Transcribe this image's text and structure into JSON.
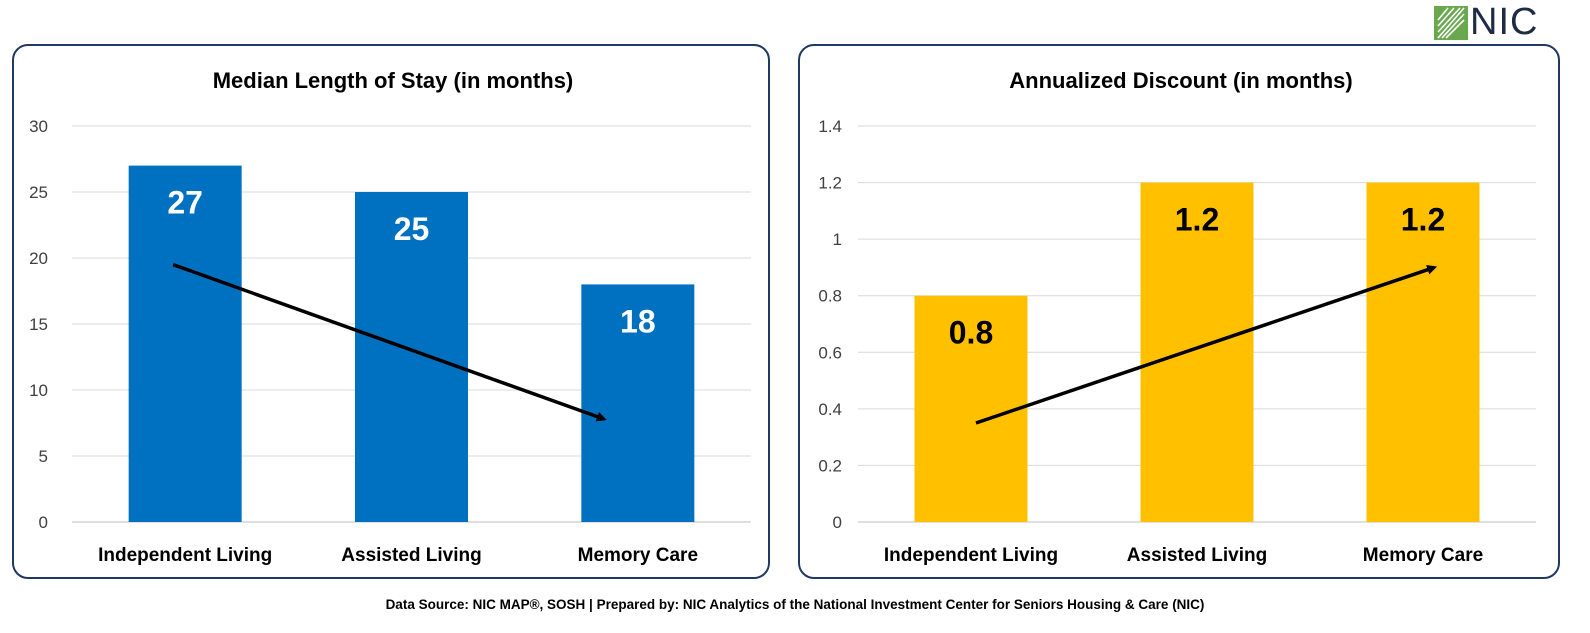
{
  "logo": {
    "text": "NIC",
    "icon": "nic-logo-icon",
    "color": "#6aa84f"
  },
  "footer": {
    "text": "Data Source: NIC MAP®, SOSH | Prepared by: NIC Analytics of the National Investment Center for Seniors Housing & Care (NIC)"
  },
  "chart_data": [
    {
      "type": "bar",
      "title": "Median Length of Stay (in months)",
      "categories": [
        "Independent Living",
        "Assisted Living",
        "Memory Care"
      ],
      "values": [
        27,
        25,
        18
      ],
      "data_labels": [
        "27",
        "25",
        "18"
      ],
      "ylim": [
        0,
        30
      ],
      "yticks": [
        0,
        5,
        10,
        15,
        20,
        25,
        30
      ],
      "ytick_labels": [
        "0",
        "5",
        "10",
        "15",
        "20",
        "25",
        "30"
      ],
      "bar_color": "#0070c0",
      "label_color": "#ffffff",
      "grid": true,
      "legend": "none",
      "trend_arrow": {
        "direction": "down",
        "from": {
          "category": "Independent Living",
          "value": 19.5
        },
        "to": {
          "category_index": 1.85,
          "value": 7.8
        }
      }
    },
    {
      "type": "bar",
      "title": "Annualized Discount (in months)",
      "categories": [
        "Independent Living",
        "Assisted Living",
        "Memory Care"
      ],
      "values": [
        0.8,
        1.2,
        1.2
      ],
      "data_labels": [
        "0.8",
        "1.2",
        "1.2"
      ],
      "ylim": [
        0,
        1.4
      ],
      "yticks": [
        0,
        0.2,
        0.4,
        0.6,
        0.8,
        1.0,
        1.2,
        1.4
      ],
      "ytick_labels": [
        "0",
        "0.2",
        "0.4",
        "0.6",
        "0.8",
        "1",
        "1.2",
        "1.4"
      ],
      "bar_color": "#ffc000",
      "label_color": "#000000",
      "grid": true,
      "legend": "none",
      "trend_arrow": {
        "direction": "up",
        "from": {
          "category": "Independent Living",
          "value": 0.35
        },
        "to": {
          "category_index": 2.05,
          "value": 0.9
        }
      }
    }
  ]
}
